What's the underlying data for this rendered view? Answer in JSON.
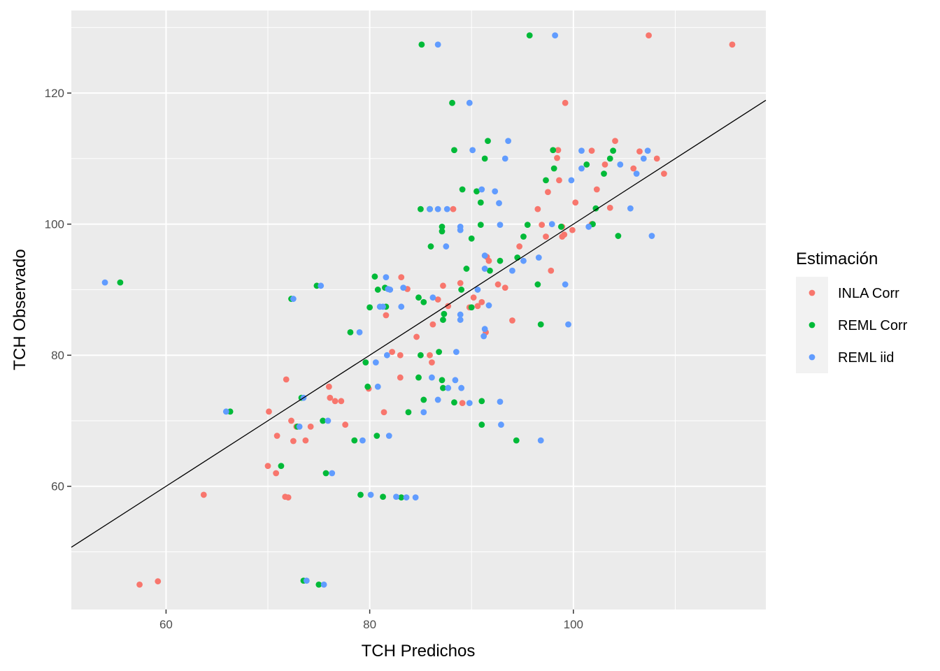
{
  "chart_data": {
    "type": "scatter",
    "xlabel": "TCH Predichos",
    "ylabel": "TCH Observado",
    "xlim": [
      50.7,
      118.9
    ],
    "ylim": [
      41.2,
      132.6
    ],
    "xticks": [
      60,
      80,
      100
    ],
    "yticks": [
      60,
      80,
      100,
      120
    ],
    "grid": true,
    "legend": {
      "title": "Estimación",
      "placement": "right"
    },
    "reference_line": {
      "slope": 1,
      "intercept": 0
    },
    "series": [
      {
        "name": "INLA Corr",
        "color": "#F8766D",
        "points": [
          [
            57.4,
            45.0
          ],
          [
            59.2,
            45.5
          ],
          [
            63.7,
            58.7
          ],
          [
            70.0,
            63.1
          ],
          [
            70.1,
            71.4
          ],
          [
            70.8,
            62.0
          ],
          [
            70.9,
            67.7
          ],
          [
            71.7,
            58.4
          ],
          [
            71.8,
            76.3
          ],
          [
            72.0,
            58.3
          ],
          [
            72.3,
            70.0
          ],
          [
            72.5,
            66.9
          ],
          [
            72.8,
            69.1
          ],
          [
            73.7,
            67.0
          ],
          [
            74.2,
            69.1
          ],
          [
            76.0,
            75.2
          ],
          [
            76.1,
            73.5
          ],
          [
            76.6,
            73.0
          ],
          [
            77.2,
            73.0
          ],
          [
            77.6,
            69.4
          ],
          [
            79.9,
            74.9
          ],
          [
            81.4,
            71.3
          ],
          [
            81.6,
            86.1
          ],
          [
            82.2,
            80.5
          ],
          [
            83.0,
            76.6
          ],
          [
            83.0,
            80.0
          ],
          [
            83.1,
            91.9
          ],
          [
            83.7,
            90.1
          ],
          [
            84.6,
            82.8
          ],
          [
            85.9,
            80.0
          ],
          [
            86.1,
            78.9
          ],
          [
            86.2,
            84.7
          ],
          [
            86.7,
            88.5
          ],
          [
            87.2,
            90.6
          ],
          [
            87.7,
            87.5
          ],
          [
            88.2,
            102.3
          ],
          [
            88.9,
            91.0
          ],
          [
            89.1,
            72.7
          ],
          [
            89.8,
            87.3
          ],
          [
            90.2,
            88.8
          ],
          [
            90.6,
            87.5
          ],
          [
            91.0,
            88.1
          ],
          [
            91.4,
            83.5
          ],
          [
            91.5,
            95.0
          ],
          [
            91.7,
            94.4
          ],
          [
            92.6,
            90.8
          ],
          [
            93.3,
            90.3
          ],
          [
            94.0,
            85.3
          ],
          [
            94.7,
            96.6
          ],
          [
            96.5,
            102.3
          ],
          [
            96.9,
            99.9
          ],
          [
            97.3,
            98.1
          ],
          [
            97.5,
            104.9
          ],
          [
            97.8,
            92.9
          ],
          [
            98.4,
            110.1
          ],
          [
            98.5,
            111.3
          ],
          [
            98.6,
            106.7
          ],
          [
            98.9,
            98.1
          ],
          [
            98.9,
            99.6
          ],
          [
            99.1,
            98.4
          ],
          [
            99.2,
            118.5
          ],
          [
            99.9,
            99.1
          ],
          [
            100.2,
            103.3
          ],
          [
            101.8,
            111.2
          ],
          [
            101.8,
            100.0
          ],
          [
            102.3,
            105.3
          ],
          [
            103.1,
            109.1
          ],
          [
            103.6,
            102.5
          ],
          [
            104.1,
            112.7
          ],
          [
            105.9,
            108.5
          ],
          [
            106.5,
            111.1
          ],
          [
            107.4,
            128.8
          ],
          [
            108.2,
            110.0
          ],
          [
            108.9,
            107.7
          ],
          [
            115.6,
            127.4
          ]
        ]
      },
      {
        "name": "REML Corr",
        "color": "#00BA38",
        "points": [
          [
            55.5,
            91.1
          ],
          [
            66.3,
            71.4
          ],
          [
            71.3,
            63.1
          ],
          [
            72.3,
            88.6
          ],
          [
            72.9,
            69.1
          ],
          [
            73.3,
            73.5
          ],
          [
            73.5,
            45.6
          ],
          [
            74.8,
            90.6
          ],
          [
            75.0,
            45.0
          ],
          [
            75.4,
            70.0
          ],
          [
            75.7,
            62.0
          ],
          [
            78.1,
            83.5
          ],
          [
            78.5,
            67.0
          ],
          [
            79.1,
            58.7
          ],
          [
            79.6,
            78.9
          ],
          [
            79.8,
            75.2
          ],
          [
            80.0,
            87.3
          ],
          [
            80.5,
            92.0
          ],
          [
            80.7,
            67.7
          ],
          [
            80.8,
            90.0
          ],
          [
            81.3,
            58.4
          ],
          [
            81.5,
            90.3
          ],
          [
            81.6,
            87.4
          ],
          [
            83.1,
            58.3
          ],
          [
            83.8,
            71.3
          ],
          [
            84.8,
            76.6
          ],
          [
            84.8,
            88.8
          ],
          [
            85.0,
            80.0
          ],
          [
            85.0,
            102.3
          ],
          [
            85.1,
            127.4
          ],
          [
            85.3,
            88.1
          ],
          [
            85.3,
            73.2
          ],
          [
            85.9,
            102.3
          ],
          [
            86.0,
            96.6
          ],
          [
            86.8,
            80.5
          ],
          [
            87.1,
            99.6
          ],
          [
            87.1,
            98.9
          ],
          [
            87.1,
            76.2
          ],
          [
            87.2,
            75.0
          ],
          [
            87.2,
            85.4
          ],
          [
            87.3,
            86.3
          ],
          [
            88.1,
            118.5
          ],
          [
            88.3,
            72.8
          ],
          [
            88.3,
            111.3
          ],
          [
            89.0,
            90.0
          ],
          [
            89.1,
            105.3
          ],
          [
            89.5,
            93.2
          ],
          [
            90.0,
            87.3
          ],
          [
            90.0,
            97.8
          ],
          [
            90.5,
            105.0
          ],
          [
            90.9,
            99.9
          ],
          [
            90.9,
            103.3
          ],
          [
            91.0,
            69.4
          ],
          [
            91.0,
            73.0
          ],
          [
            91.3,
            110.0
          ],
          [
            91.6,
            112.7
          ],
          [
            91.8,
            92.9
          ],
          [
            92.8,
            94.4
          ],
          [
            94.4,
            67.0
          ],
          [
            94.5,
            94.9
          ],
          [
            95.1,
            98.1
          ],
          [
            95.5,
            99.9
          ],
          [
            95.7,
            128.8
          ],
          [
            96.5,
            90.8
          ],
          [
            96.8,
            84.7
          ],
          [
            97.3,
            106.7
          ],
          [
            98.0,
            111.3
          ],
          [
            98.1,
            108.5
          ],
          [
            98.8,
            99.6
          ],
          [
            101.3,
            109.1
          ],
          [
            101.9,
            100.0
          ],
          [
            102.2,
            102.4
          ],
          [
            103.0,
            107.7
          ],
          [
            103.6,
            110.0
          ],
          [
            103.9,
            111.2
          ],
          [
            104.4,
            98.2
          ]
        ]
      },
      {
        "name": "REML iid",
        "color": "#619CFF",
        "points": [
          [
            54.0,
            91.1
          ],
          [
            65.9,
            71.4
          ],
          [
            72.5,
            88.6
          ],
          [
            73.1,
            69.1
          ],
          [
            73.5,
            73.5
          ],
          [
            73.8,
            45.6
          ],
          [
            75.2,
            90.6
          ],
          [
            75.5,
            45.0
          ],
          [
            75.9,
            70.0
          ],
          [
            76.3,
            62.0
          ],
          [
            79.0,
            83.5
          ],
          [
            79.3,
            67.0
          ],
          [
            80.1,
            58.7
          ],
          [
            80.6,
            78.9
          ],
          [
            80.8,
            75.2
          ],
          [
            81.0,
            87.4
          ],
          [
            81.3,
            87.4
          ],
          [
            81.6,
            91.9
          ],
          [
            81.7,
            80.0
          ],
          [
            81.8,
            90.1
          ],
          [
            81.9,
            67.7
          ],
          [
            82.0,
            90.0
          ],
          [
            82.6,
            58.4
          ],
          [
            83.1,
            87.4
          ],
          [
            83.3,
            90.3
          ],
          [
            83.6,
            58.3
          ],
          [
            84.5,
            58.3
          ],
          [
            85.3,
            71.3
          ],
          [
            85.9,
            102.3
          ],
          [
            86.1,
            76.6
          ],
          [
            86.2,
            88.8
          ],
          [
            86.7,
            102.3
          ],
          [
            86.7,
            73.2
          ],
          [
            86.7,
            127.4
          ],
          [
            87.5,
            96.6
          ],
          [
            87.6,
            102.3
          ],
          [
            87.7,
            75.0
          ],
          [
            88.4,
            76.2
          ],
          [
            88.5,
            80.5
          ],
          [
            88.9,
            99.6
          ],
          [
            88.9,
            86.2
          ],
          [
            88.9,
            85.4
          ],
          [
            88.9,
            99.1
          ],
          [
            89.0,
            75.0
          ],
          [
            89.8,
            72.7
          ],
          [
            89.8,
            118.5
          ],
          [
            90.1,
            111.3
          ],
          [
            90.6,
            90.0
          ],
          [
            91.0,
            105.3
          ],
          [
            91.2,
            82.9
          ],
          [
            91.3,
            93.2
          ],
          [
            91.3,
            84.0
          ],
          [
            91.3,
            95.2
          ],
          [
            91.7,
            87.6
          ],
          [
            92.3,
            105.0
          ],
          [
            92.7,
            103.2
          ],
          [
            92.8,
            99.9
          ],
          [
            92.8,
            72.9
          ],
          [
            92.9,
            69.4
          ],
          [
            93.3,
            110.0
          ],
          [
            93.6,
            112.7
          ],
          [
            94.0,
            92.9
          ],
          [
            95.1,
            94.4
          ],
          [
            96.6,
            94.9
          ],
          [
            96.8,
            67.0
          ],
          [
            97.9,
            100.0
          ],
          [
            98.2,
            128.8
          ],
          [
            99.2,
            90.8
          ],
          [
            99.5,
            84.7
          ],
          [
            99.8,
            106.7
          ],
          [
            100.8,
            111.2
          ],
          [
            100.8,
            108.5
          ],
          [
            101.5,
            99.6
          ],
          [
            104.6,
            109.1
          ],
          [
            105.6,
            102.4
          ],
          [
            106.2,
            107.7
          ],
          [
            106.9,
            110.0
          ],
          [
            107.3,
            111.2
          ],
          [
            107.7,
            98.2
          ]
        ]
      }
    ]
  }
}
